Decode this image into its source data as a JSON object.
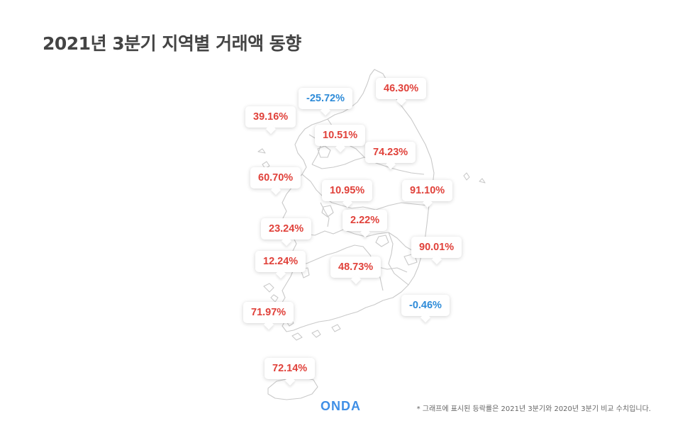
{
  "title": "2021년 3분기 지역별 거래액 동향",
  "colors": {
    "positive": "#e0413a",
    "negative": "#2e8bd8",
    "title": "#444444",
    "map_stroke": "#c9c9c9",
    "logo": "#3f8fe6"
  },
  "regions": [
    {
      "value": "-25.72%",
      "sign": "negative"
    },
    {
      "value": "46.30%",
      "sign": "positive"
    },
    {
      "value": "39.16%",
      "sign": "positive"
    },
    {
      "value": "10.51%",
      "sign": "positive"
    },
    {
      "value": "74.23%",
      "sign": "positive"
    },
    {
      "value": "60.70%",
      "sign": "positive"
    },
    {
      "value": "10.95%",
      "sign": "positive"
    },
    {
      "value": "91.10%",
      "sign": "positive"
    },
    {
      "value": "2.22%",
      "sign": "positive"
    },
    {
      "value": "23.24%",
      "sign": "positive"
    },
    {
      "value": "90.01%",
      "sign": "positive"
    },
    {
      "value": "12.24%",
      "sign": "positive"
    },
    {
      "value": "48.73%",
      "sign": "positive"
    },
    {
      "value": "-0.46%",
      "sign": "negative"
    },
    {
      "value": "71.97%",
      "sign": "positive"
    },
    {
      "value": "72.14%",
      "sign": "positive"
    }
  ],
  "logo": "ONDA",
  "footnote": "* 그래프에 표시된 등락률은 2021년 3분기와 2020년 3분기 비교 수치입니다."
}
